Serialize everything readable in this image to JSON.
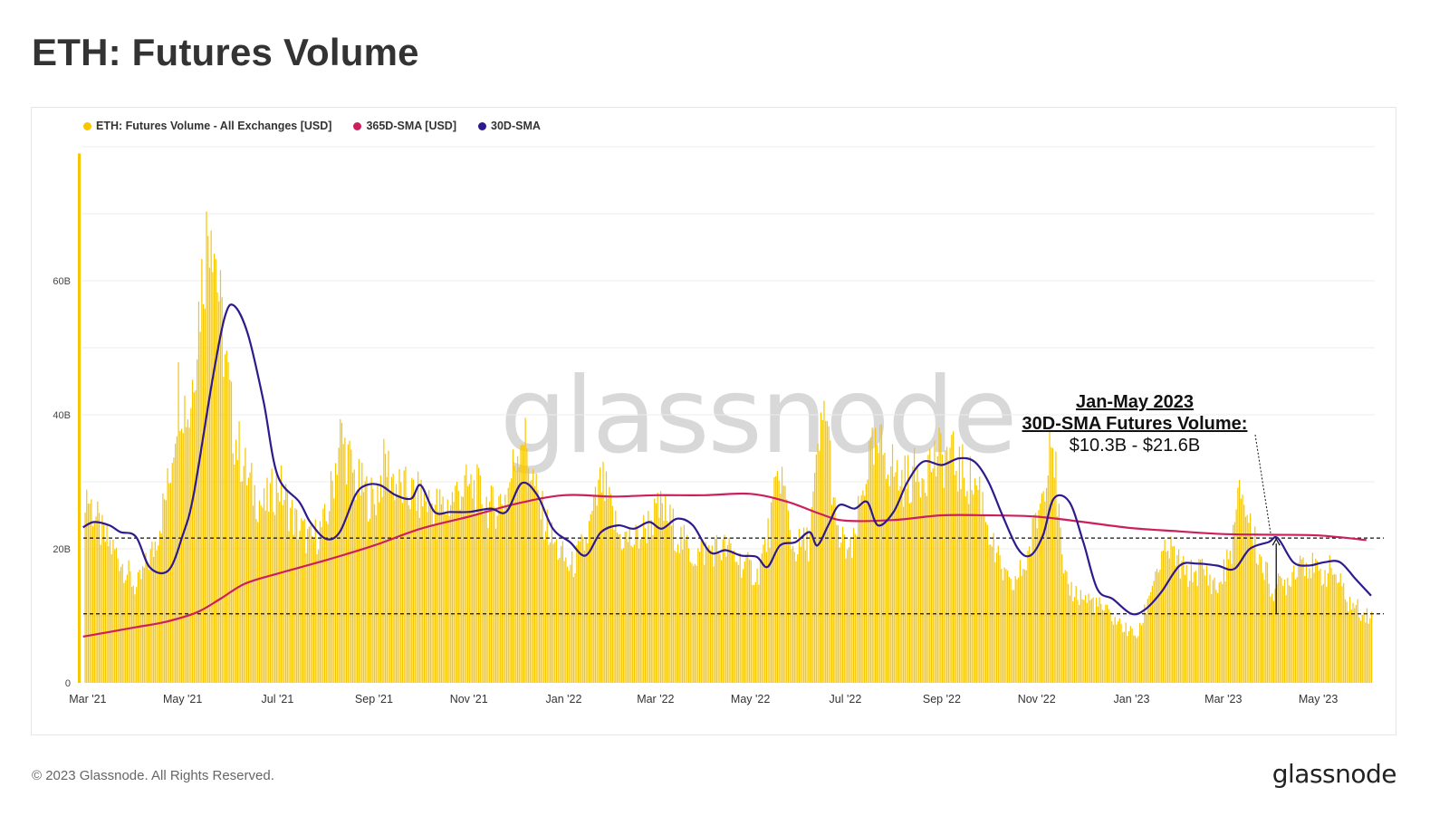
{
  "title": "ETH: Futures Volume",
  "footer": {
    "copyright": "© 2023 Glassnode. All Rights Reserved.",
    "logo": "glassnode"
  },
  "watermark": "glassnode",
  "legend": [
    {
      "label": "ETH: Futures Volume - All Exchanges [USD]",
      "color": "#f7c600"
    },
    {
      "label": "365D-SMA [USD]",
      "color": "#cc1f5e"
    },
    {
      "label": "30D-SMA",
      "color": "#2e1a8c"
    }
  ],
  "annotation": {
    "line1": "Jan-May 2023",
    "line2": "30D-SMA Futures Volume:",
    "line3": "$10.3B - $21.6B"
  },
  "chart_data": {
    "type": "bar",
    "x_start": "2021-02-25",
    "x_end": "2023-06-04",
    "y_ticks": [
      {
        "value": 0,
        "label": "0"
      },
      {
        "value": 20,
        "label": "20B"
      },
      {
        "value": 40,
        "label": "40B"
      },
      {
        "value": 60,
        "label": "60B"
      }
    ],
    "ylim": [
      0,
      80
    ],
    "x_ticks": [
      {
        "date": "2021-03-01",
        "label": "Mar '21"
      },
      {
        "date": "2021-05-01",
        "label": "May '21"
      },
      {
        "date": "2021-07-01",
        "label": "Jul '21"
      },
      {
        "date": "2021-09-01",
        "label": "Sep '21"
      },
      {
        "date": "2021-11-01",
        "label": "Nov '21"
      },
      {
        "date": "2022-01-01",
        "label": "Jan '22"
      },
      {
        "date": "2022-03-01",
        "label": "Mar '22"
      },
      {
        "date": "2022-05-01",
        "label": "May '22"
      },
      {
        "date": "2022-07-01",
        "label": "Jul '22"
      },
      {
        "date": "2022-09-01",
        "label": "Sep '22"
      },
      {
        "date": "2022-11-01",
        "label": "Nov '22"
      },
      {
        "date": "2023-01-01",
        "label": "Jan '23"
      },
      {
        "date": "2023-03-01",
        "label": "Mar '23"
      },
      {
        "date": "2023-05-01",
        "label": "May '23"
      }
    ],
    "reference_lines": [
      21.6,
      10.3
    ],
    "series": [
      {
        "name": "ETH: Futures Volume - All Exchanges [USD]",
        "kind": "bars",
        "color": "#f7c600",
        "points": [
          [
            "2021-02-27",
            29
          ],
          [
            "2021-03-10",
            22
          ],
          [
            "2021-03-20",
            19
          ],
          [
            "2021-04-01",
            14
          ],
          [
            "2021-04-12",
            20
          ],
          [
            "2021-04-22",
            30
          ],
          [
            "2021-04-28",
            44
          ],
          [
            "2021-05-05",
            40
          ],
          [
            "2021-05-12",
            58
          ],
          [
            "2021-05-19",
            72
          ],
          [
            "2021-05-25",
            55
          ],
          [
            "2021-06-02",
            38
          ],
          [
            "2021-06-12",
            30
          ],
          [
            "2021-06-22",
            26
          ],
          [
            "2021-07-01",
            30
          ],
          [
            "2021-07-12",
            24
          ],
          [
            "2021-07-22",
            21
          ],
          [
            "2021-08-01",
            24
          ],
          [
            "2021-08-10",
            37
          ],
          [
            "2021-08-20",
            30
          ],
          [
            "2021-09-01",
            27
          ],
          [
            "2021-09-08",
            33
          ],
          [
            "2021-09-16",
            29
          ],
          [
            "2021-09-26",
            28
          ],
          [
            "2021-10-06",
            27
          ],
          [
            "2021-10-16",
            26
          ],
          [
            "2021-10-26",
            29
          ],
          [
            "2021-11-05",
            29
          ],
          [
            "2021-11-15",
            26
          ],
          [
            "2021-11-25",
            28
          ],
          [
            "2021-12-05",
            38
          ],
          [
            "2021-12-15",
            27
          ],
          [
            "2021-12-25",
            21
          ],
          [
            "2022-01-05",
            17
          ],
          [
            "2022-01-15",
            21
          ],
          [
            "2022-01-25",
            30
          ],
          [
            "2022-02-05",
            22
          ],
          [
            "2022-02-15",
            21
          ],
          [
            "2022-02-25",
            24
          ],
          [
            "2022-03-05",
            26
          ],
          [
            "2022-03-15",
            22
          ],
          [
            "2022-03-25",
            19
          ],
          [
            "2022-04-05",
            20
          ],
          [
            "2022-04-15",
            20
          ],
          [
            "2022-04-25",
            18
          ],
          [
            "2022-05-05",
            16
          ],
          [
            "2022-05-12",
            22
          ],
          [
            "2022-05-20",
            32
          ],
          [
            "2022-05-28",
            20
          ],
          [
            "2022-06-07",
            21
          ],
          [
            "2022-06-13",
            33
          ],
          [
            "2022-06-18",
            42
          ],
          [
            "2022-06-25",
            22
          ],
          [
            "2022-07-05",
            19
          ],
          [
            "2022-07-15",
            33
          ],
          [
            "2022-07-25",
            35
          ],
          [
            "2022-08-05",
            30
          ],
          [
            "2022-08-15",
            31
          ],
          [
            "2022-08-25",
            33
          ],
          [
            "2022-09-05",
            34
          ],
          [
            "2022-09-15",
            31
          ],
          [
            "2022-09-25",
            29
          ],
          [
            "2022-10-05",
            19
          ],
          [
            "2022-10-15",
            14
          ],
          [
            "2022-10-25",
            18
          ],
          [
            "2022-11-05",
            29
          ],
          [
            "2022-11-10",
            40
          ],
          [
            "2022-11-18",
            15
          ],
          [
            "2022-11-28",
            13
          ],
          [
            "2022-12-08",
            12
          ],
          [
            "2022-12-18",
            10
          ],
          [
            "2022-12-28",
            8
          ],
          [
            "2023-01-05",
            7
          ],
          [
            "2023-01-15",
            16
          ],
          [
            "2023-01-25",
            20
          ],
          [
            "2023-02-05",
            16
          ],
          [
            "2023-02-15",
            17
          ],
          [
            "2023-02-25",
            14
          ],
          [
            "2023-03-05",
            19
          ],
          [
            "2023-03-12",
            29
          ],
          [
            "2023-03-22",
            20
          ],
          [
            "2023-04-01",
            14
          ],
          [
            "2023-04-10",
            15
          ],
          [
            "2023-04-20",
            19
          ],
          [
            "2023-05-01",
            16
          ],
          [
            "2023-05-10",
            17
          ],
          [
            "2023-05-20",
            12
          ],
          [
            "2023-06-02",
            10
          ]
        ]
      },
      {
        "name": "365D-SMA [USD]",
        "kind": "line",
        "color": "#cc1f5e",
        "points": [
          [
            "2021-02-26",
            6.9
          ],
          [
            "2021-03-15",
            7.6
          ],
          [
            "2021-04-01",
            8.3
          ],
          [
            "2021-04-20",
            9.1
          ],
          [
            "2021-05-10",
            10.5
          ],
          [
            "2021-05-25",
            12.5
          ],
          [
            "2021-06-10",
            14.8
          ],
          [
            "2021-07-01",
            16.3
          ],
          [
            "2021-08-01",
            18.3
          ],
          [
            "2021-09-01",
            20.5
          ],
          [
            "2021-10-01",
            23.0
          ],
          [
            "2021-11-01",
            24.8
          ],
          [
            "2021-12-01",
            26.7
          ],
          [
            "2022-01-01",
            28.0
          ],
          [
            "2022-02-01",
            27.8
          ],
          [
            "2022-03-01",
            28.0
          ],
          [
            "2022-04-01",
            28.0
          ],
          [
            "2022-05-01",
            28.2
          ],
          [
            "2022-05-25",
            27.0
          ],
          [
            "2022-06-15",
            25.2
          ],
          [
            "2022-07-01",
            24.2
          ],
          [
            "2022-08-01",
            24.3
          ],
          [
            "2022-09-01",
            25.0
          ],
          [
            "2022-10-01",
            25.0
          ],
          [
            "2022-11-01",
            24.8
          ],
          [
            "2022-12-01",
            24.0
          ],
          [
            "2023-01-01",
            23.1
          ],
          [
            "2023-02-01",
            22.6
          ],
          [
            "2023-03-01",
            22.2
          ],
          [
            "2023-04-01",
            22.1
          ],
          [
            "2023-05-01",
            22.0
          ],
          [
            "2023-06-01",
            21.3
          ]
        ]
      },
      {
        "name": "30D-SMA",
        "kind": "line",
        "color": "#2e1a8c",
        "points": [
          [
            "2021-02-26",
            23.2
          ],
          [
            "2021-03-05",
            24.0
          ],
          [
            "2021-03-15",
            23.5
          ],
          [
            "2021-03-22",
            22.5
          ],
          [
            "2021-04-01",
            21.8
          ],
          [
            "2021-04-10",
            17.2
          ],
          [
            "2021-04-22",
            16.8
          ],
          [
            "2021-05-01",
            22.0
          ],
          [
            "2021-05-08",
            28.0
          ],
          [
            "2021-05-20",
            45.0
          ],
          [
            "2021-05-28",
            54.5
          ],
          [
            "2021-06-03",
            56.3
          ],
          [
            "2021-06-12",
            52.0
          ],
          [
            "2021-06-22",
            42.0
          ],
          [
            "2021-07-01",
            31.0
          ],
          [
            "2021-07-15",
            27.0
          ],
          [
            "2021-07-22",
            24.0
          ],
          [
            "2021-08-01",
            21.5
          ],
          [
            "2021-08-10",
            22.5
          ],
          [
            "2021-08-20",
            28.0
          ],
          [
            "2021-08-27",
            29.5
          ],
          [
            "2021-09-05",
            29.5
          ],
          [
            "2021-09-15",
            28.0
          ],
          [
            "2021-09-25",
            27.5
          ],
          [
            "2021-10-01",
            29.5
          ],
          [
            "2021-10-10",
            25.5
          ],
          [
            "2021-10-20",
            25.5
          ],
          [
            "2021-11-01",
            25.5
          ],
          [
            "2021-11-15",
            26.0
          ],
          [
            "2021-11-25",
            25.5
          ],
          [
            "2021-12-05",
            29.8
          ],
          [
            "2021-12-15",
            28.0
          ],
          [
            "2021-12-25",
            23.0
          ],
          [
            "2022-01-05",
            21.0
          ],
          [
            "2022-01-15",
            19.0
          ],
          [
            "2022-01-25",
            22.5
          ],
          [
            "2022-02-05",
            23.5
          ],
          [
            "2022-02-15",
            23.0
          ],
          [
            "2022-02-25",
            24.0
          ],
          [
            "2022-03-05",
            23.0
          ],
          [
            "2022-03-15",
            24.5
          ],
          [
            "2022-03-25",
            23.5
          ],
          [
            "2022-04-05",
            19.5
          ],
          [
            "2022-04-15",
            19.8
          ],
          [
            "2022-04-25",
            19.0
          ],
          [
            "2022-05-05",
            18.8
          ],
          [
            "2022-05-12",
            17.3
          ],
          [
            "2022-05-20",
            20.5
          ],
          [
            "2022-05-30",
            21.0
          ],
          [
            "2022-06-08",
            22.5
          ],
          [
            "2022-06-13",
            20.5
          ],
          [
            "2022-06-20",
            23.5
          ],
          [
            "2022-06-27",
            26.5
          ],
          [
            "2022-07-07",
            26.0
          ],
          [
            "2022-07-15",
            27.0
          ],
          [
            "2022-07-22",
            23.5
          ],
          [
            "2022-08-01",
            25.5
          ],
          [
            "2022-08-10",
            30.0
          ],
          [
            "2022-08-20",
            33.0
          ],
          [
            "2022-09-01",
            32.5
          ],
          [
            "2022-09-12",
            33.5
          ],
          [
            "2022-09-22",
            33.0
          ],
          [
            "2022-10-01",
            30.0
          ],
          [
            "2022-10-10",
            25.0
          ],
          [
            "2022-10-20",
            20.0
          ],
          [
            "2022-10-28",
            19.0
          ],
          [
            "2022-11-05",
            22.0
          ],
          [
            "2022-11-12",
            27.5
          ],
          [
            "2022-11-22",
            27.0
          ],
          [
            "2022-12-01",
            21.0
          ],
          [
            "2022-12-10",
            14.0
          ],
          [
            "2022-12-20",
            12.5
          ],
          [
            "2023-01-01",
            10.3
          ],
          [
            "2023-01-10",
            11.0
          ],
          [
            "2023-01-20",
            13.5
          ],
          [
            "2023-02-01",
            17.5
          ],
          [
            "2023-02-12",
            17.8
          ],
          [
            "2023-02-25",
            17.5
          ],
          [
            "2023-03-08",
            17.0
          ],
          [
            "2023-03-18",
            20.0
          ],
          [
            "2023-03-30",
            21.0
          ],
          [
            "2023-04-05",
            21.6
          ],
          [
            "2023-04-15",
            18.0
          ],
          [
            "2023-04-25",
            17.5
          ],
          [
            "2023-05-05",
            18.0
          ],
          [
            "2023-05-15",
            18.0
          ],
          [
            "2023-05-25",
            15.5
          ],
          [
            "2023-06-04",
            13.0
          ]
        ]
      }
    ]
  }
}
